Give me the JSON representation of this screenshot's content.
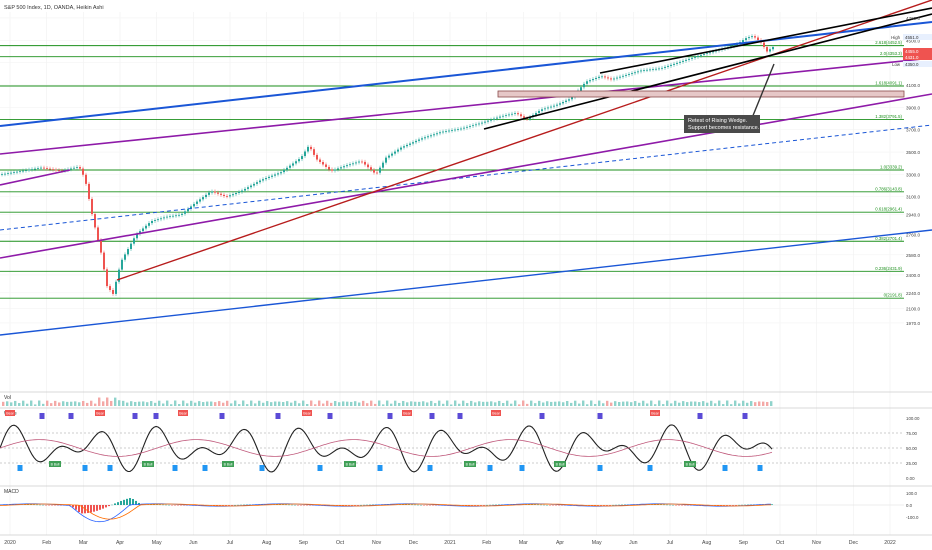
{
  "header": {
    "symbol_title": "S&P 500 Index, 1D, OANDA, Heikin Ashi"
  },
  "chart_data": {
    "type": "candlestick",
    "x_ticks": [
      "2020",
      "Feb",
      "Mar",
      "Apr",
      "May",
      "Jun",
      "Jul",
      "Aug",
      "Sep",
      "Oct",
      "Nov",
      "Dec",
      "2021",
      "Feb",
      "Mar",
      "Apr",
      "May",
      "Jun",
      "Jul",
      "Aug",
      "Sep",
      "Oct",
      "Nov",
      "Dec",
      "2022"
    ],
    "y_ticks": [
      "4700.0",
      "4500.0",
      "4300.0",
      "4100.0",
      "3900.0",
      "3700.0",
      "3500.0",
      "3300.0",
      "3100.0",
      "2940.0",
      "2760.0",
      "2580.0",
      "2400.0",
      "2240.0",
      "2100.0",
      "1970.0"
    ],
    "price_tags": {
      "high": "4551.0",
      "last": "4455.0",
      "open": "4431.0",
      "low": "4350.0"
    },
    "fib_labels": [
      "2.618(4452.5)",
      "2.0(4353.3)",
      "1.618(4091.1)",
      "1.382(3791.5)",
      "1.0(3339.2)",
      "0.786(3143.8)",
      "0.618(2961.4)",
      "0.382(2701.4)",
      "0.236(2431.9)",
      "0(2191.8)"
    ],
    "fib_prices": [
      4452.5,
      4353.3,
      4091.1,
      3791.5,
      3339.2,
      3143.8,
      2961.4,
      2701.4,
      2431.9,
      2191.8
    ],
    "annotation": [
      "Retest of Rising Wedge.",
      "Support becomes resistance."
    ],
    "high_label": "High",
    "low_label": "Low",
    "panes": [
      {
        "name": "Vol",
        "scale": []
      },
      {
        "name": "Wave",
        "scale": [
          "100.00",
          "75.00",
          "50.00",
          "25.00",
          "0.00"
        ]
      },
      {
        "name": "MACD",
        "scale": [
          "100.0",
          "0.0",
          "-100.0"
        ]
      }
    ],
    "signal_labels": {
      "bear": "Bear",
      "bull": "Bull",
      "b_bull": "B Bull"
    },
    "colors": {
      "bull": "#26a69a",
      "bear": "#ef5350",
      "fib_line": "#1b8f1b",
      "blue_trend": "#1a56d6",
      "purple_trend": "#8e1aa8",
      "red_trend": "#b71c1c",
      "wedge": "#000000"
    }
  }
}
